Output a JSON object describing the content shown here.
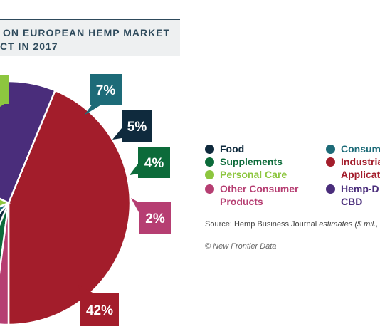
{
  "title": {
    "line1": "ON EUROPEAN HEMP MARKET",
    "line2": "CT IN 2017"
  },
  "source": {
    "prefix": "Source: Hemp Business Journal ",
    "italic": "estimates ($ mil., co"
  },
  "copyright": "© New Frontier Data",
  "chart_data": {
    "type": "pie",
    "slices": [
      {
        "name": "Industrial Applications",
        "label": "Industria Applicati",
        "value": 42,
        "display": "42%",
        "color": "#a31d2b"
      },
      {
        "name": "Hemp-Derived CBD",
        "label": "Hemp-D CBD",
        "value": 23,
        "display": "",
        "color": "#4a2d7b"
      },
      {
        "name": "Personal Care",
        "label": "Personal Care",
        "value": 13,
        "display": "",
        "color": "#8dc63f"
      },
      {
        "name": "Consumer Textiles",
        "label": "Consum",
        "value": 7,
        "display": "7%",
        "color": "#1d6b78"
      },
      {
        "name": "Food",
        "label": "Food",
        "value": 5,
        "display": "5%",
        "color": "#0f2a3d"
      },
      {
        "name": "Supplements",
        "label": "Supplements",
        "value": 4,
        "display": "4%",
        "color": "#0c6b3a"
      },
      {
        "name": "Other Consumer Products",
        "label": "Other Consumer Products",
        "value": 2,
        "display": "2%",
        "color": "#b63e72"
      }
    ]
  },
  "legend": {
    "items": [
      {
        "text": "Food",
        "color": "#0f2a3d"
      },
      {
        "text": "Supplements",
        "color": "#0c6b3a"
      },
      {
        "text": "Personal Care",
        "color": "#8dc63f"
      },
      {
        "text": "Other Consumer",
        "text2": "Products",
        "color": "#b63e72"
      },
      {
        "text": "Consum",
        "color": "#1d6b78"
      },
      {
        "text": "Industria",
        "text2": "Applicati",
        "color": "#a31d2b"
      },
      {
        "text": "Hemp-D",
        "text2": "CBD",
        "color": "#4a2d7b"
      }
    ]
  }
}
